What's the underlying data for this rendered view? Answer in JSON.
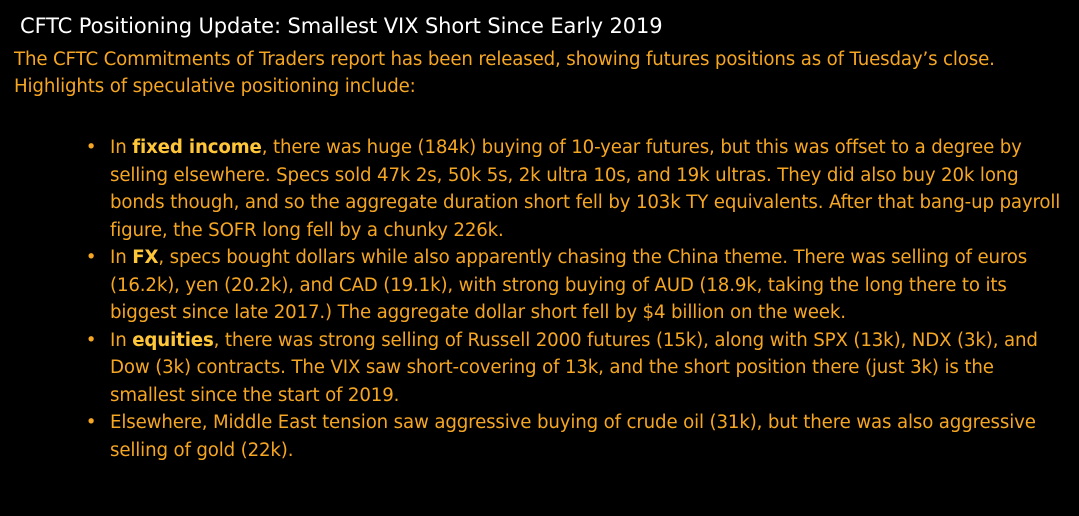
{
  "title": "CFTC Positioning Update: Smallest VIX Short Since Early 2019",
  "intro": "The CFTC Commitments of Traders report has been released, showing futures positions as of Tuesday’s close. Highlights of speculative positioning include:",
  "bullet_glyph": "•",
  "colors": {
    "background": "#000000",
    "title": "#ffffff",
    "body_text": "#f5a623",
    "keyword": "#ffc63a"
  },
  "bullets": [
    {
      "prefix": "In ",
      "keyword": "fixed income",
      "text": ", there was huge (184k) buying of 10-year futures, but this was offset to a degree by selling elsewhere. Specs sold 47k 2s, 50k 5s, 2k ultra 10s, and 19k ultras. They did also buy 20k long bonds though, and so the aggregate duration short fell by 103k TY equivalents. After that bang-up payroll figure, the SOFR long fell by a chunky 226k."
    },
    {
      "prefix": "In ",
      "keyword": "FX",
      "text": ", specs bought dollars while also apparently chasing the China theme. There was selling of euros (16.2k), yen (20.2k), and CAD (19.1k), with strong buying of AUD (18.9k, taking the long there to its biggest since late 2017.) The aggregate dollar short fell by $4 billion on the week."
    },
    {
      "prefix": "In ",
      "keyword": "equities",
      "text": ", there was strong selling of Russell 2000 futures (15k), along with SPX (13k), NDX (3k), and Dow (3k) contracts. The VIX saw short-covering of 13k, and the short position there (just 3k) is the smallest since the start of 2019."
    },
    {
      "prefix": "",
      "keyword": "",
      "text": "Elsewhere, Middle East tension saw aggressive buying of crude oil (31k), but there was also aggressive selling of gold (22k)."
    }
  ]
}
